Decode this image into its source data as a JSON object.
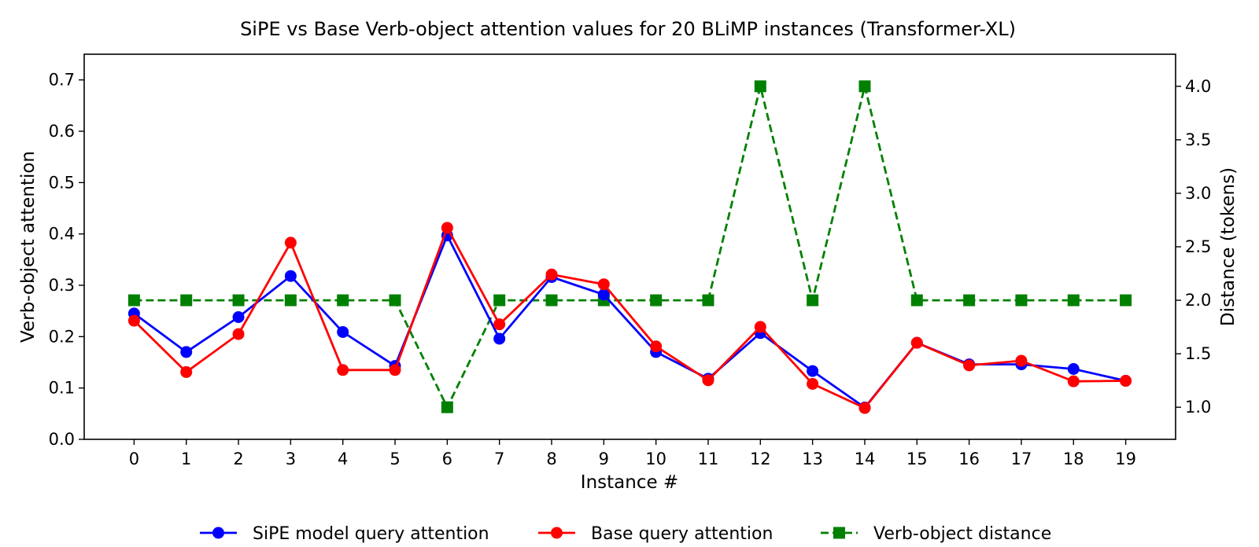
{
  "chart_data": {
    "type": "line",
    "title": "SiPE vs Base Verb-object attention values for 20 BLiMP instances (Transformer-XL)",
    "xlabel": "Instance #",
    "ylabel": "Verb-object attention",
    "y2label": "Distance (tokens)",
    "x": [
      0,
      1,
      2,
      3,
      4,
      5,
      6,
      7,
      8,
      9,
      10,
      11,
      12,
      13,
      14,
      15,
      16,
      17,
      18,
      19
    ],
    "x_ticks": [
      "0",
      "1",
      "2",
      "3",
      "4",
      "5",
      "6",
      "7",
      "8",
      "9",
      "10",
      "11",
      "12",
      "13",
      "14",
      "15",
      "16",
      "17",
      "18",
      "19"
    ],
    "ylim": [
      0,
      0.75
    ],
    "y_ticks": [
      "0.0",
      "0.1",
      "0.2",
      "0.3",
      "0.4",
      "0.5",
      "0.6",
      "0.7"
    ],
    "y2lim": [
      0.7,
      4.3
    ],
    "y2_ticks": [
      "1.0",
      "1.5",
      "2.0",
      "2.5",
      "3.0",
      "3.5",
      "4.0"
    ],
    "grid": false,
    "legend_position": "bottom-center",
    "series": [
      {
        "name": "SiPE model query attention",
        "axis": "left",
        "color": "#0000ff",
        "marker": "circle",
        "line_style": "solid",
        "values": [
          0.245,
          0.17,
          0.238,
          0.318,
          0.209,
          0.143,
          0.397,
          0.196,
          0.316,
          0.282,
          0.17,
          0.118,
          0.207,
          0.133,
          0.062,
          0.188,
          0.146,
          0.146,
          0.137,
          0.114
        ]
      },
      {
        "name": "Base query attention",
        "axis": "left",
        "color": "#ff0000",
        "marker": "circle",
        "line_style": "solid",
        "values": [
          0.231,
          0.131,
          0.205,
          0.383,
          0.135,
          0.135,
          0.412,
          0.224,
          0.321,
          0.302,
          0.181,
          0.115,
          0.219,
          0.108,
          0.061,
          0.188,
          0.144,
          0.153,
          0.113,
          0.114
        ]
      },
      {
        "name": "Verb-object distance",
        "axis": "right",
        "color": "#008000",
        "marker": "square",
        "line_style": "dashed",
        "values": [
          2,
          2,
          2,
          2,
          2,
          2,
          1,
          2,
          2,
          2,
          2,
          2,
          4,
          2,
          4,
          2,
          2,
          2,
          2,
          2
        ]
      }
    ]
  }
}
